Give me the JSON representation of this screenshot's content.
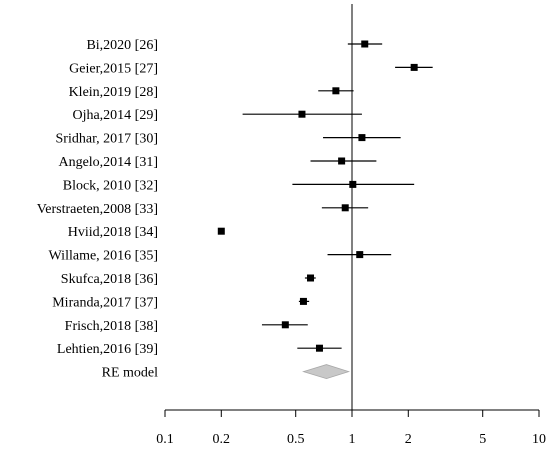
{
  "chart_data": {
    "type": "forest",
    "title": "",
    "xlabel": "",
    "ylabel": "",
    "x_scale": "log",
    "xlim": [
      0.1,
      10
    ],
    "reference_line": 1,
    "ticks": [
      {
        "value": 0.1,
        "label": "0.1"
      },
      {
        "value": 0.2,
        "label": "0.2"
      },
      {
        "value": 0.5,
        "label": "0.5"
      },
      {
        "value": 1,
        "label": "1"
      },
      {
        "value": 2,
        "label": "2"
      },
      {
        "value": 5,
        "label": "5"
      },
      {
        "value": 10,
        "label": "10"
      }
    ],
    "studies": [
      {
        "label": "Bi,2020 [26]",
        "est": 1.17,
        "lo": 0.95,
        "hi": 1.45
      },
      {
        "label": "Geier,2015 [27]",
        "est": 2.15,
        "lo": 1.7,
        "hi": 2.7
      },
      {
        "label": "Klein,2019 [28]",
        "est": 0.82,
        "lo": 0.66,
        "hi": 1.02
      },
      {
        "label": "Ojha,2014 [29]",
        "est": 0.54,
        "lo": 0.26,
        "hi": 1.13
      },
      {
        "label": "Sridhar, 2017 [30]",
        "est": 1.13,
        "lo": 0.7,
        "hi": 1.82
      },
      {
        "label": "Angelo,2014 [31]",
        "est": 0.88,
        "lo": 0.6,
        "hi": 1.35
      },
      {
        "label": "Block, 2010 [32]",
        "est": 1.01,
        "lo": 0.48,
        "hi": 2.15
      },
      {
        "label": "Verstraeten,2008 [33]",
        "est": 0.92,
        "lo": 0.69,
        "hi": 1.22
      },
      {
        "label": "Hviid,2018 [34]",
        "est": 0.2,
        "lo": 0.195,
        "hi": 0.205
      },
      {
        "label": "Willame, 2016 [35]",
        "est": 1.1,
        "lo": 0.74,
        "hi": 1.62
      },
      {
        "label": "Skufca,2018 [36]",
        "est": 0.6,
        "lo": 0.56,
        "hi": 0.64
      },
      {
        "label": "Miranda,2017 [37]",
        "est": 0.55,
        "lo": 0.52,
        "hi": 0.59
      },
      {
        "label": "Frisch,2018 [38]",
        "est": 0.44,
        "lo": 0.33,
        "hi": 0.58
      },
      {
        "label": "Lehtien,2016 [39]",
        "est": 0.67,
        "lo": 0.51,
        "hi": 0.88
      }
    ],
    "summary": {
      "label": "RE model",
      "est": 0.73,
      "lo": 0.55,
      "hi": 0.96
    },
    "colors": {
      "marker": "#000000",
      "line": "#000000",
      "summary_fill": "#c8c8c8",
      "summary_stroke": "#a8a8a8"
    }
  }
}
